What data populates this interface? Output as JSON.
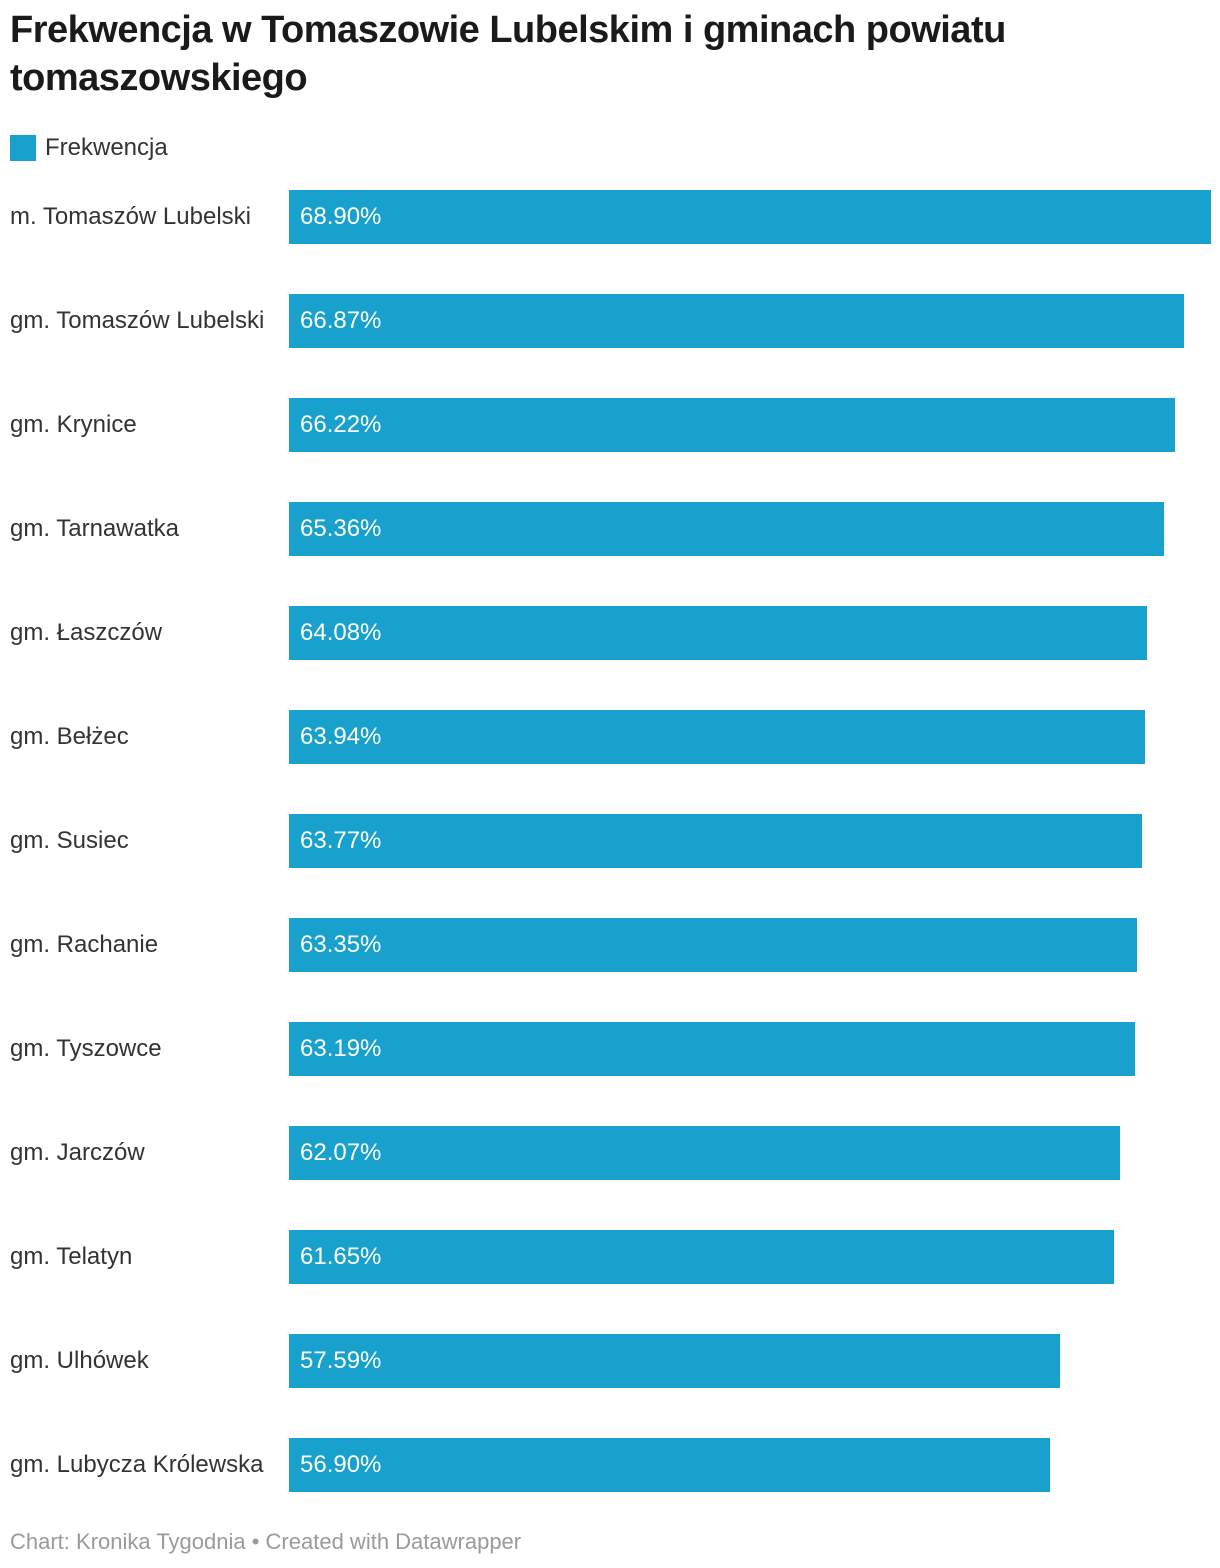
{
  "title": "Frekwencja w Tomaszowie Lubelskim i gminach powiatu tomaszowskiego",
  "legend": {
    "label": "Frekwencja",
    "color": "#18a1cd"
  },
  "footer": "Chart: Kronika Tygodnia • Created with Datawrapper",
  "chart_data": {
    "type": "bar",
    "orientation": "horizontal",
    "title": "Frekwencja w Tomaszowie Lubelskim i gminach powiatu tomaszowskiego",
    "legend_label": "Frekwencja",
    "unit": "%",
    "bar_color": "#18a1cd",
    "value_label_color": "#ffffff",
    "axis_range": [
      0,
      68.9
    ],
    "max_value": 68.9,
    "grid": false,
    "legend_position": "top-left",
    "categories": [
      "m. Tomaszów Lubelski",
      "gm. Tomaszów Lubelski",
      "gm. Krynice",
      "gm. Tarnawatka",
      "gm. Łaszczów",
      "gm. Bełżec",
      "gm. Susiec",
      "gm. Rachanie",
      "gm. Tyszowce",
      "gm. Jarczów",
      "gm. Telatyn",
      "gm. Ulhówek",
      "gm. Lubycza Królewska"
    ],
    "values": [
      68.9,
      66.87,
      66.22,
      65.36,
      64.08,
      63.94,
      63.77,
      63.35,
      63.19,
      62.07,
      61.65,
      57.59,
      56.9
    ],
    "value_labels": [
      "68.90%",
      "66.87%",
      "66.22%",
      "65.36%",
      "64.08%",
      "63.94%",
      "63.77%",
      "63.35%",
      "63.19%",
      "62.07%",
      "61.65%",
      "57.59%",
      "56.90%"
    ]
  }
}
